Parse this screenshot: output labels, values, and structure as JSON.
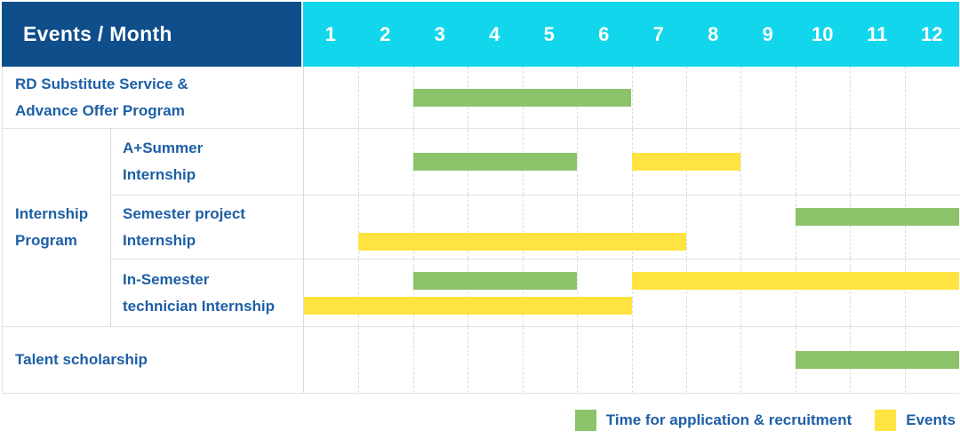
{
  "title": {
    "corner": "Events / Month"
  },
  "header": {
    "months": [
      "1",
      "2",
      "3",
      "4",
      "5",
      "6",
      "7",
      "8",
      "9",
      "10",
      "11",
      "12"
    ]
  },
  "colors": {
    "header_bg": "#0F4E8B",
    "months_bg": "#12D6EC",
    "bar_green": "#8BC36A",
    "bar_yellow": "#FFE340",
    "label_text": "#1D5FA6",
    "grid_line": "#DBDBDB",
    "row_border": "#E2E2E2",
    "col_border": "#D9D9D9"
  },
  "rows": [
    {
      "label": "RD Substitute Service &\nAdvance Offer Program",
      "group": null,
      "bars": [
        {
          "color": "green",
          "start_month": 3,
          "end_month": 7,
          "lane": "single"
        }
      ]
    },
    {
      "label": "A+Summer\nInternship",
      "group": "Internship\nProgram",
      "bars": [
        {
          "color": "green",
          "start_month": 3,
          "end_month": 6,
          "lane": "single"
        },
        {
          "color": "yellow",
          "start_month": 7,
          "end_month": 9,
          "lane": "single"
        }
      ]
    },
    {
      "label": "Semester project\nInternship",
      "group": "Internship\nProgram",
      "bars": [
        {
          "color": "green",
          "start_month": 10,
          "end_month": 13,
          "lane": "top"
        },
        {
          "color": "yellow",
          "start_month": 2,
          "end_month": 8,
          "lane": "bottom"
        }
      ]
    },
    {
      "label": "In-Semester\ntechnician Internship",
      "group": "Internship\nProgram",
      "bars": [
        {
          "color": "green",
          "start_month": 3,
          "end_month": 6,
          "lane": "top"
        },
        {
          "color": "yellow",
          "start_month": 7,
          "end_month": 13,
          "lane": "top"
        },
        {
          "color": "yellow",
          "start_month": 1,
          "end_month": 7,
          "lane": "bottom"
        }
      ]
    },
    {
      "label": "Talent scholarship",
      "group": null,
      "bars": [
        {
          "color": "green",
          "start_month": 10,
          "end_month": 13,
          "lane": "single"
        }
      ]
    }
  ],
  "legend": {
    "items": [
      {
        "color": "green",
        "label": "Time for application & recruitment"
      },
      {
        "color": "yellow",
        "label": "Events"
      }
    ]
  },
  "chart_data": {
    "type": "table",
    "subtype": "gantt",
    "title": "Events / Month",
    "xlabel": "Month",
    "x_ticks": [
      1,
      2,
      3,
      4,
      5,
      6,
      7,
      8,
      9,
      10,
      11,
      12
    ],
    "x_range": [
      1,
      12
    ],
    "grid": true,
    "legend_position": "bottom-right",
    "series_kinds": [
      "Time for application & recruitment",
      "Events"
    ],
    "rows": [
      {
        "name": "RD Substitute Service & Advance Offer Program",
        "group": null,
        "spans": [
          {
            "kind": "Time for application & recruitment",
            "months": [
              3,
              6
            ]
          }
        ]
      },
      {
        "name": "A+Summer Internship",
        "group": "Internship Program",
        "spans": [
          {
            "kind": "Time for application & recruitment",
            "months": [
              3,
              5
            ]
          },
          {
            "kind": "Events",
            "months": [
              7,
              8
            ]
          }
        ]
      },
      {
        "name": "Semester project Internship",
        "group": "Internship Program",
        "spans": [
          {
            "kind": "Time for application & recruitment",
            "months": [
              10,
              12
            ]
          },
          {
            "kind": "Events",
            "months": [
              2,
              7
            ]
          }
        ]
      },
      {
        "name": "In-Semester technician Internship",
        "group": "Internship Program",
        "spans": [
          {
            "kind": "Time for application & recruitment",
            "months": [
              3,
              5
            ]
          },
          {
            "kind": "Events",
            "months": [
              7,
              12
            ]
          },
          {
            "kind": "Events",
            "months": [
              1,
              6
            ]
          }
        ]
      },
      {
        "name": "Talent scholarship",
        "group": null,
        "spans": [
          {
            "kind": "Time for application & recruitment",
            "months": [
              10,
              12
            ]
          }
        ]
      }
    ]
  }
}
